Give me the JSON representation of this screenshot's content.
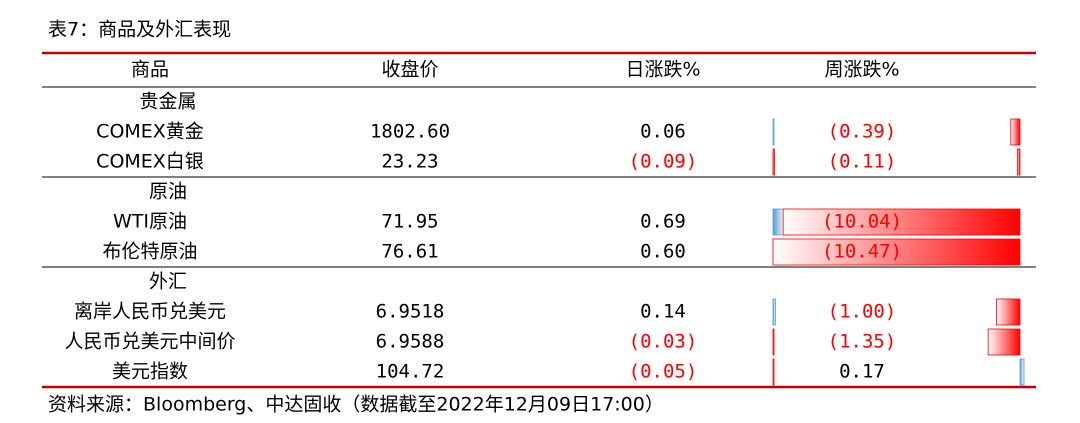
{
  "title": "表7：商品及外汇表现",
  "table": {
    "headers": [
      "商品",
      "收盘价",
      "日涨跌%",
      "周涨跌%"
    ],
    "groups": [
      {
        "name": "贵金属",
        "rows": [
          {
            "name": "COMEX黄金",
            "close": "1802.60",
            "daily": {
              "value": 0.06,
              "label": "0.06"
            },
            "weekly": {
              "value": -0.39,
              "label": "(0.39)"
            }
          },
          {
            "name": "COMEX白银",
            "close": "23.23",
            "daily": {
              "value": -0.09,
              "label": "(0.09)"
            },
            "weekly": {
              "value": -0.11,
              "label": "(0.11)"
            }
          }
        ]
      },
      {
        "name": "原油",
        "rows": [
          {
            "name": "WTI原油",
            "close": "71.95",
            "daily": {
              "value": 0.69,
              "label": "0.69"
            },
            "weekly": {
              "value": -10.04,
              "label": "(10.04)"
            }
          },
          {
            "name": "布伦特原油",
            "close": "76.61",
            "daily": {
              "value": 0.6,
              "label": "0.60"
            },
            "weekly": {
              "value": -10.47,
              "label": "(10.47)"
            }
          }
        ]
      },
      {
        "name": "外汇",
        "rows": [
          {
            "name": "离岸人民币兑美元",
            "close": "6.9518",
            "daily": {
              "value": 0.14,
              "label": "0.14"
            },
            "weekly": {
              "value": -1.0,
              "label": "(1.00)"
            }
          },
          {
            "name": "人民币兑美元中间价",
            "close": "6.9588",
            "daily": {
              "value": -0.03,
              "label": "(0.03)"
            },
            "weekly": {
              "value": -1.35,
              "label": "(1.35)"
            }
          },
          {
            "name": "美元指数",
            "close": "104.72",
            "daily": {
              "value": -0.05,
              "label": "(0.05)"
            },
            "weekly": {
              "value": 0.17,
              "label": "0.17"
            }
          }
        ]
      }
    ]
  },
  "source": "资料来源：Bloomberg、中达固收（数据截至2022年12月09日17:00）"
}
